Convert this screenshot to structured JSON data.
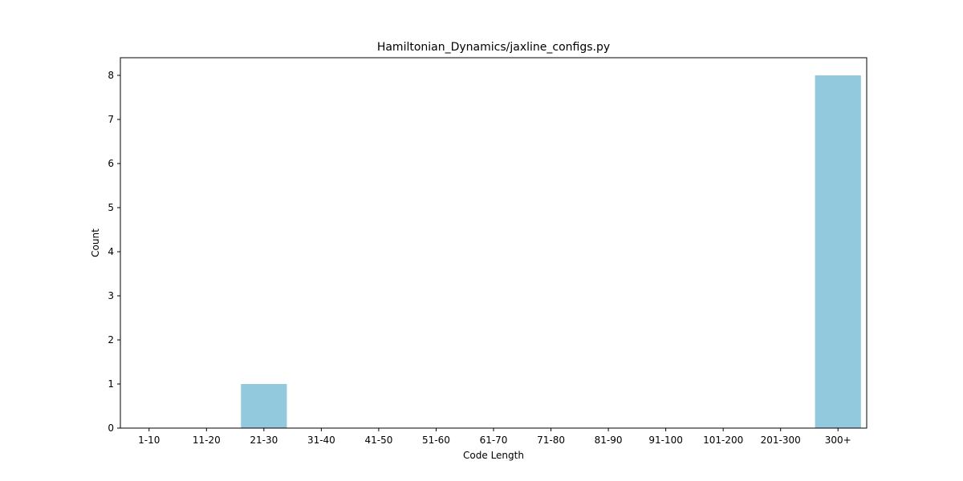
{
  "chart_data": {
    "type": "bar",
    "title": "Hamiltonian_Dynamics/jaxline_configs.py",
    "xlabel": "Code Length",
    "ylabel": "Count",
    "categories": [
      "1-10",
      "11-20",
      "21-30",
      "31-40",
      "41-50",
      "51-60",
      "61-70",
      "71-80",
      "81-90",
      "91-100",
      "101-200",
      "201-300",
      "300+"
    ],
    "values": [
      0,
      0,
      1,
      0,
      0,
      0,
      0,
      0,
      0,
      0,
      0,
      0,
      8
    ],
    "ylim": [
      0,
      8.4
    ],
    "yticks": [
      0,
      1,
      2,
      3,
      4,
      5,
      6,
      7,
      8
    ],
    "grid": false,
    "bar_color": "#92c9dc"
  }
}
